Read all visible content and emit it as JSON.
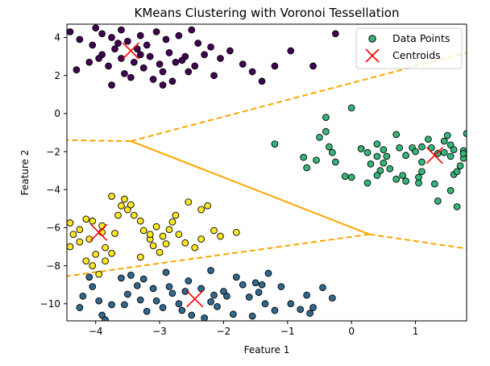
{
  "chart_data": {
    "type": "scatter",
    "title": "KMeans Clustering with Voronoi Tessellation",
    "xlabel": "Feature 1",
    "ylabel": "Feature 2",
    "xlim": [
      -4.45,
      1.8
    ],
    "ylim": [
      -10.9,
      4.7
    ],
    "xticks": [
      -4,
      -3,
      -2,
      -1,
      0,
      1
    ],
    "yticks": [
      -10,
      -8,
      -6,
      -4,
      -2,
      0,
      2,
      4
    ],
    "grid": false,
    "legend": {
      "placement": "top-right",
      "entries": [
        {
          "label": "Data Points",
          "marker": "circle"
        },
        {
          "label": "Centroids",
          "marker": "x"
        }
      ]
    },
    "voronoi_color": "#ffa500",
    "voronoi_edges": [
      {
        "style": "solid",
        "points": [
          [
            -3.45,
            -1.45
          ],
          [
            0.28,
            -6.35
          ]
        ]
      },
      {
        "style": "dashed",
        "points": [
          [
            -3.45,
            -1.45
          ],
          [
            -4.45,
            -1.4
          ]
        ]
      },
      {
        "style": "dashed",
        "points": [
          [
            -3.45,
            -1.45
          ],
          [
            1.8,
            3.2
          ]
        ]
      },
      {
        "style": "dashed",
        "points": [
          [
            0.28,
            -6.35
          ],
          [
            -4.45,
            -8.55
          ]
        ]
      },
      {
        "style": "dashed",
        "points": [
          [
            0.28,
            -6.35
          ],
          [
            1.8,
            -7.1
          ]
        ]
      }
    ],
    "centroids": [
      {
        "x": -3.45,
        "y": 3.3
      },
      {
        "x": 1.3,
        "y": -2.2
      },
      {
        "x": -2.45,
        "y": -9.75
      },
      {
        "x": -3.95,
        "y": -6.25
      }
    ],
    "series": [
      {
        "color": "#440154",
        "points": [
          [
            -4.4,
            4.3
          ],
          [
            -4.25,
            3.9
          ],
          [
            -4.0,
            4.5
          ],
          [
            -3.9,
            4.2
          ],
          [
            -3.75,
            4.0
          ],
          [
            -3.6,
            4.4
          ],
          [
            -3.5,
            3.8
          ],
          [
            -3.3,
            4.1
          ],
          [
            -3.2,
            3.6
          ],
          [
            -3.05,
            4.3
          ],
          [
            -2.9,
            3.9
          ],
          [
            -2.7,
            4.1
          ],
          [
            -2.5,
            4.4
          ],
          [
            -2.4,
            3.7
          ],
          [
            -2.3,
            3.1
          ],
          [
            -2.2,
            3.5
          ],
          [
            -2.05,
            2.9
          ],
          [
            -1.9,
            3.3
          ],
          [
            -1.7,
            2.6
          ],
          [
            -1.55,
            2.2
          ],
          [
            -1.4,
            1.7
          ],
          [
            -1.2,
            2.5
          ],
          [
            -0.95,
            3.3
          ],
          [
            -0.6,
            2.5
          ],
          [
            -0.25,
            4.2
          ],
          [
            -4.3,
            2.3
          ],
          [
            -4.1,
            2.7
          ],
          [
            -3.9,
            3.1
          ],
          [
            -3.8,
            2.5
          ],
          [
            -3.7,
            3.4
          ],
          [
            -3.6,
            2.9
          ],
          [
            -3.55,
            2.1
          ],
          [
            -3.4,
            2.7
          ],
          [
            -3.35,
            3.4
          ],
          [
            -3.25,
            2.4
          ],
          [
            -3.15,
            3.0
          ],
          [
            -3.0,
            2.6
          ],
          [
            -2.95,
            2.2
          ],
          [
            -2.85,
            3.2
          ],
          [
            -2.75,
            2.7
          ],
          [
            -2.6,
            3.0
          ],
          [
            -2.55,
            2.2
          ],
          [
            -2.8,
            1.7
          ],
          [
            -3.1,
            1.8
          ],
          [
            -3.75,
            1.5
          ],
          [
            -4.05,
            3.6
          ],
          [
            -3.95,
            2.9
          ],
          [
            -3.65,
            3.7
          ],
          [
            -3.3,
            3.1
          ],
          [
            -2.65,
            2.8
          ],
          [
            -2.45,
            2.5
          ],
          [
            -2.15,
            2.0
          ],
          [
            -2.95,
            1.5
          ],
          [
            -3.45,
            1.9
          ]
        ]
      },
      {
        "color": "#35b779",
        "points": [
          [
            -0.4,
            -0.2
          ],
          [
            0.0,
            0.3
          ],
          [
            -0.4,
            -0.95
          ],
          [
            -0.5,
            -1.25
          ],
          [
            -0.35,
            -1.75
          ],
          [
            -0.3,
            -2.05
          ],
          [
            -0.55,
            -2.45
          ],
          [
            -0.75,
            -2.3
          ],
          [
            -0.7,
            -2.85
          ],
          [
            -1.2,
            -1.6
          ],
          [
            -0.25,
            -2.55
          ],
          [
            -0.1,
            -3.3
          ],
          [
            0.0,
            -3.35
          ],
          [
            0.15,
            -1.85
          ],
          [
            0.25,
            -2.05
          ],
          [
            0.3,
            -2.65
          ],
          [
            0.4,
            -1.6
          ],
          [
            0.4,
            -2.25
          ],
          [
            0.5,
            -1.9
          ],
          [
            0.55,
            -2.25
          ],
          [
            0.5,
            -2.6
          ],
          [
            0.6,
            -2.9
          ],
          [
            0.45,
            -3.0
          ],
          [
            0.25,
            -3.65
          ],
          [
            0.4,
            -3.25
          ],
          [
            0.7,
            -1.1
          ],
          [
            0.75,
            -1.8
          ],
          [
            0.85,
            -2.2
          ],
          [
            0.8,
            -3.25
          ],
          [
            0.7,
            -3.45
          ],
          [
            0.85,
            -3.55
          ],
          [
            0.95,
            -1.8
          ],
          [
            1.1,
            -1.75
          ],
          [
            1.1,
            -2.55
          ],
          [
            1.1,
            -3.05
          ],
          [
            1.05,
            -3.35
          ],
          [
            1.05,
            -3.65
          ],
          [
            1.2,
            -1.35
          ],
          [
            1.25,
            -1.8
          ],
          [
            1.35,
            -2.1
          ],
          [
            1.45,
            -2.05
          ],
          [
            1.5,
            -1.15
          ],
          [
            1.45,
            -1.45
          ],
          [
            1.55,
            -1.65
          ],
          [
            1.55,
            -2.25
          ],
          [
            1.6,
            -3.2
          ],
          [
            1.65,
            -3.05
          ],
          [
            1.3,
            -3.7
          ],
          [
            1.35,
            -4.6
          ],
          [
            1.55,
            -4.05
          ],
          [
            1.65,
            -4.9
          ],
          [
            1.75,
            -1.95
          ],
          [
            1.75,
            -2.35
          ],
          [
            1.8,
            -1.05
          ],
          [
            1.7,
            -2.75
          ],
          [
            1.75,
            -2.1
          ],
          [
            1.6,
            -1.9
          ],
          [
            1.0,
            -2.0
          ]
        ]
      },
      {
        "color": "#31688e",
        "points": [
          [
            -4.1,
            -8.6
          ],
          [
            -4.05,
            -9.1
          ],
          [
            -4.2,
            -9.6
          ],
          [
            -4.25,
            -10.2
          ],
          [
            -3.95,
            -9.85
          ],
          [
            -3.9,
            -10.6
          ],
          [
            -3.75,
            -10.05
          ],
          [
            -3.5,
            -9.5
          ],
          [
            -3.35,
            -9.05
          ],
          [
            -3.3,
            -9.8
          ],
          [
            -3.2,
            -10.4
          ],
          [
            -3.1,
            -9.2
          ],
          [
            -3.05,
            -9.85
          ],
          [
            -2.95,
            -10.2
          ],
          [
            -2.8,
            -9.45
          ],
          [
            -2.7,
            -10.0
          ],
          [
            -2.6,
            -9.35
          ],
          [
            -2.5,
            -10.6
          ],
          [
            -2.35,
            -9.2
          ],
          [
            -2.2,
            -9.9
          ],
          [
            -2.1,
            -10.15
          ],
          [
            -1.95,
            -9.6
          ],
          [
            -1.85,
            -10.55
          ],
          [
            -1.7,
            -9.0
          ],
          [
            -1.6,
            -9.65
          ],
          [
            -1.45,
            -9.4
          ],
          [
            -1.35,
            -10.0
          ],
          [
            -1.2,
            -10.35
          ],
          [
            -1.1,
            -9.1
          ],
          [
            -0.95,
            -10.0
          ],
          [
            -0.8,
            -10.3
          ],
          [
            -0.7,
            -9.55
          ],
          [
            -0.6,
            -10.2
          ],
          [
            -0.45,
            -9.15
          ],
          [
            -0.3,
            -9.7
          ],
          [
            -0.65,
            -10.5
          ],
          [
            -3.6,
            -8.65
          ],
          [
            -3.45,
            -8.5
          ],
          [
            -3.25,
            -8.7
          ],
          [
            -2.9,
            -8.35
          ],
          [
            -2.55,
            -8.8
          ],
          [
            -2.2,
            -8.25
          ],
          [
            -1.8,
            -8.6
          ],
          [
            -1.5,
            -8.9
          ],
          [
            -1.3,
            -8.4
          ],
          [
            -2.0,
            -9.35
          ],
          [
            -2.65,
            -10.35
          ],
          [
            -3.55,
            -10.05
          ],
          [
            -2.3,
            -10.75
          ],
          [
            -1.55,
            -10.65
          ],
          [
            -3.85,
            -10.85
          ],
          [
            -2.85,
            -9.1
          ],
          [
            -2.15,
            -9.55
          ],
          [
            -1.4,
            -9.0
          ]
        ]
      },
      {
        "color": "#fde725",
        "points": [
          [
            -4.4,
            -5.75
          ],
          [
            -4.35,
            -6.35
          ],
          [
            -4.25,
            -6.75
          ],
          [
            -4.1,
            -6.6
          ],
          [
            -4.05,
            -5.65
          ],
          [
            -3.9,
            -5.9
          ],
          [
            -3.85,
            -7.05
          ],
          [
            -3.7,
            -6.3
          ],
          [
            -3.6,
            -4.85
          ],
          [
            -3.5,
            -5.05
          ],
          [
            -3.45,
            -4.8
          ],
          [
            -3.4,
            -5.35
          ],
          [
            -3.3,
            -5.65
          ],
          [
            -3.25,
            -6.15
          ],
          [
            -3.15,
            -6.6
          ],
          [
            -3.1,
            -6.95
          ],
          [
            -3.05,
            -5.95
          ],
          [
            -2.95,
            -6.45
          ],
          [
            -2.85,
            -6.1
          ],
          [
            -2.8,
            -5.7
          ],
          [
            -2.7,
            -6.35
          ],
          [
            -2.6,
            -6.8
          ],
          [
            -2.55,
            -4.65
          ],
          [
            -2.45,
            -7.05
          ],
          [
            -2.35,
            -5.05
          ],
          [
            -2.25,
            -4.85
          ],
          [
            -2.15,
            -6.15
          ],
          [
            -2.05,
            -6.45
          ],
          [
            -1.8,
            -6.25
          ],
          [
            -4.0,
            -7.4
          ],
          [
            -4.05,
            -8.0
          ],
          [
            -3.95,
            -8.45
          ],
          [
            -3.75,
            -7.35
          ],
          [
            -4.15,
            -7.75
          ],
          [
            -3.9,
            -6.25
          ],
          [
            -3.65,
            -5.35
          ],
          [
            -3.3,
            -7.55
          ],
          [
            -3.0,
            -7.3
          ],
          [
            -2.9,
            -6.85
          ],
          [
            -4.25,
            -6.1
          ],
          [
            -4.4,
            -7.0
          ],
          [
            -3.75,
            -4.35
          ],
          [
            -4.15,
            -5.55
          ],
          [
            -3.85,
            -7.75
          ],
          [
            -2.75,
            -5.35
          ],
          [
            -3.55,
            -4.5
          ],
          [
            -2.35,
            -6.6
          ],
          [
            -3.15,
            -6.35
          ]
        ]
      }
    ]
  }
}
